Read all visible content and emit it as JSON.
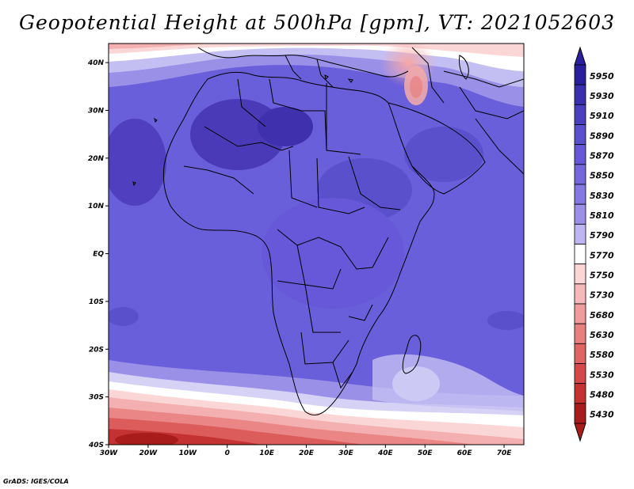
{
  "title": "Geopotential Height at 500hPa [gpm], VT: 2021052603",
  "credit": "GrADS: IGES/COLA",
  "map": {
    "lat_labels": [
      "40N",
      "30N",
      "20N",
      "10N",
      "EQ",
      "10S",
      "20S",
      "30S",
      "40S"
    ],
    "lon_labels": [
      "30W",
      "20W",
      "10W",
      "0",
      "10E",
      "20E",
      "30E",
      "40E",
      "50E",
      "60E",
      "70E"
    ]
  },
  "colorbar": {
    "labels": [
      "5950",
      "5930",
      "5910",
      "5890",
      "5870",
      "5850",
      "5830",
      "5810",
      "5790",
      "5770",
      "5750",
      "5730",
      "5680",
      "5630",
      "5580",
      "5530",
      "5480",
      "5430"
    ],
    "colors": [
      "#2a1f9c",
      "#3a2fae",
      "#4a3fbe",
      "#5a50cc",
      "#6658d8",
      "#7468dc",
      "#8478e2",
      "#9a90e8",
      "#bdb6f2",
      "#ffffff",
      "#fbd6d6",
      "#f6b8b8",
      "#f09c9c",
      "#e98080",
      "#e06464",
      "#d54848",
      "#c43232",
      "#a81c1c"
    ],
    "top_color": "#2a1f9c",
    "bottom_color": "#a81c1c"
  },
  "colors": {
    "land_border": "#000000",
    "frame": "#000000"
  }
}
